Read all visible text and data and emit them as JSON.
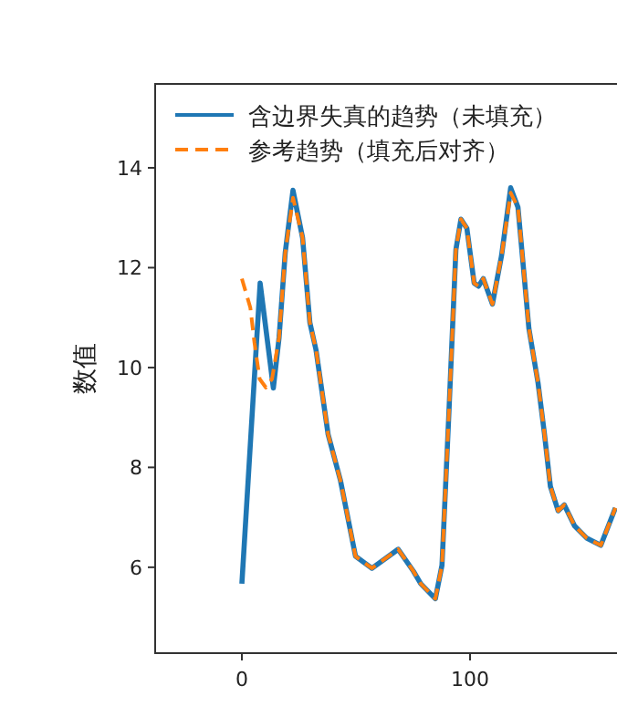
{
  "chart_data": {
    "type": "line",
    "ylabel": "数值",
    "xlim": [
      -38,
      200
    ],
    "ylim": [
      4.28,
      15.68
    ],
    "xticks": [
      0,
      100
    ],
    "yticks": [
      6,
      8,
      10,
      12,
      14
    ],
    "grid": false,
    "legend": "top left",
    "series": [
      {
        "name": "含边界失真的趋势（未填充）",
        "color": "#1f77b4",
        "line_style": "solid",
        "x": [
          0,
          8,
          13.8,
          16.3,
          19,
          22.4,
          26.6,
          29.8,
          32.5,
          37.8,
          43.2,
          49.8,
          57,
          68.5,
          75.2,
          78.4,
          84.8,
          87.7,
          90.6,
          93.8,
          96,
          98.6,
          101.8,
          103.7,
          105.8,
          109.8,
          113.8,
          117.8,
          121,
          125.8,
          129.8,
          132.5,
          135.2,
          138.6,
          141.3,
          145.8,
          151.2,
          157.3,
          163.7
        ],
        "values": [
          5.67,
          11.69,
          9.59,
          10.6,
          12.3,
          13.55,
          12.6,
          10.9,
          10.35,
          8.66,
          7.74,
          6.22,
          5.98,
          6.36,
          5.92,
          5.67,
          5.37,
          6.04,
          8.96,
          12.36,
          12.97,
          12.79,
          11.69,
          11.63,
          11.78,
          11.27,
          12.24,
          13.6,
          13.21,
          10.78,
          9.69,
          8.71,
          7.62,
          7.13,
          7.25,
          6.83,
          6.58,
          6.44,
          7.19
        ]
      },
      {
        "name": "参考趋势（填充后对齐）",
        "color": "#ff7f0e",
        "line_style": "dashed",
        "x": [
          0,
          3.7,
          5.5,
          7.8,
          10.5,
          13.2,
          16.3,
          19,
          22.4,
          26.6,
          29.8,
          32.5,
          37.8,
          43.2,
          49.8,
          57,
          68.5,
          75.2,
          78.4,
          84.8,
          87.7,
          90.6,
          93.8,
          96,
          98.6,
          101.8,
          103.7,
          105.8,
          109.8,
          113.8,
          117.8,
          121,
          125.8,
          129.8,
          132.5,
          135.2,
          138.6,
          141.3,
          145.8,
          151.2,
          157.3,
          163.7
        ],
        "values": [
          11.78,
          11.2,
          10.5,
          9.77,
          9.6,
          9.77,
          10.6,
          12.3,
          13.4,
          12.6,
          10.9,
          10.35,
          8.66,
          7.74,
          6.22,
          5.98,
          6.36,
          5.92,
          5.67,
          5.37,
          6.04,
          8.96,
          12.36,
          12.97,
          12.79,
          11.69,
          11.63,
          11.78,
          11.27,
          12.24,
          13.5,
          13.21,
          10.78,
          9.69,
          8.71,
          7.62,
          7.13,
          7.25,
          6.83,
          6.58,
          6.44,
          7.19
        ]
      }
    ]
  }
}
